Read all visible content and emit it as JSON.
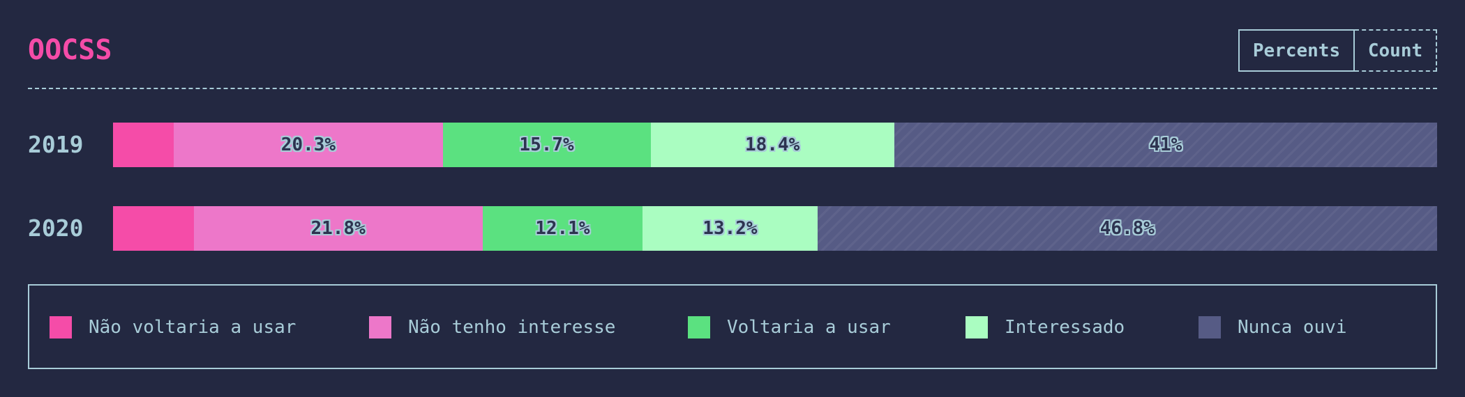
{
  "title": "OOCSS",
  "toggle": {
    "percents_label": "Percents",
    "count_label": "Count"
  },
  "colors": {
    "background": "#232841",
    "text": "#a8ccd8",
    "title": "#f54ca8"
  },
  "chart_data": {
    "type": "bar",
    "orientation": "horizontal",
    "stacked": true,
    "categories": [
      "2019",
      "2020"
    ],
    "series": [
      {
        "name": "Não voltaria a usar",
        "color": "#f54ca8",
        "values": [
          4.6,
          6.1
        ],
        "labels": [
          "",
          ""
        ]
      },
      {
        "name": "Não tenho interesse",
        "color": "#ed77c9",
        "values": [
          20.3,
          21.8
        ],
        "labels": [
          "20.3%",
          "21.8%"
        ]
      },
      {
        "name": "Voltaria a usar",
        "color": "#5be180",
        "values": [
          15.7,
          12.1
        ],
        "labels": [
          "15.7%",
          "12.1%"
        ]
      },
      {
        "name": "Interessado",
        "color": "#aafdc1",
        "values": [
          18.4,
          13.2
        ],
        "labels": [
          "18.4%",
          "13.2%"
        ]
      },
      {
        "name": "Nunca ouvi",
        "color": "#565b85",
        "values": [
          41,
          46.8
        ],
        "labels": [
          "41%",
          "46.8%"
        ]
      }
    ]
  }
}
